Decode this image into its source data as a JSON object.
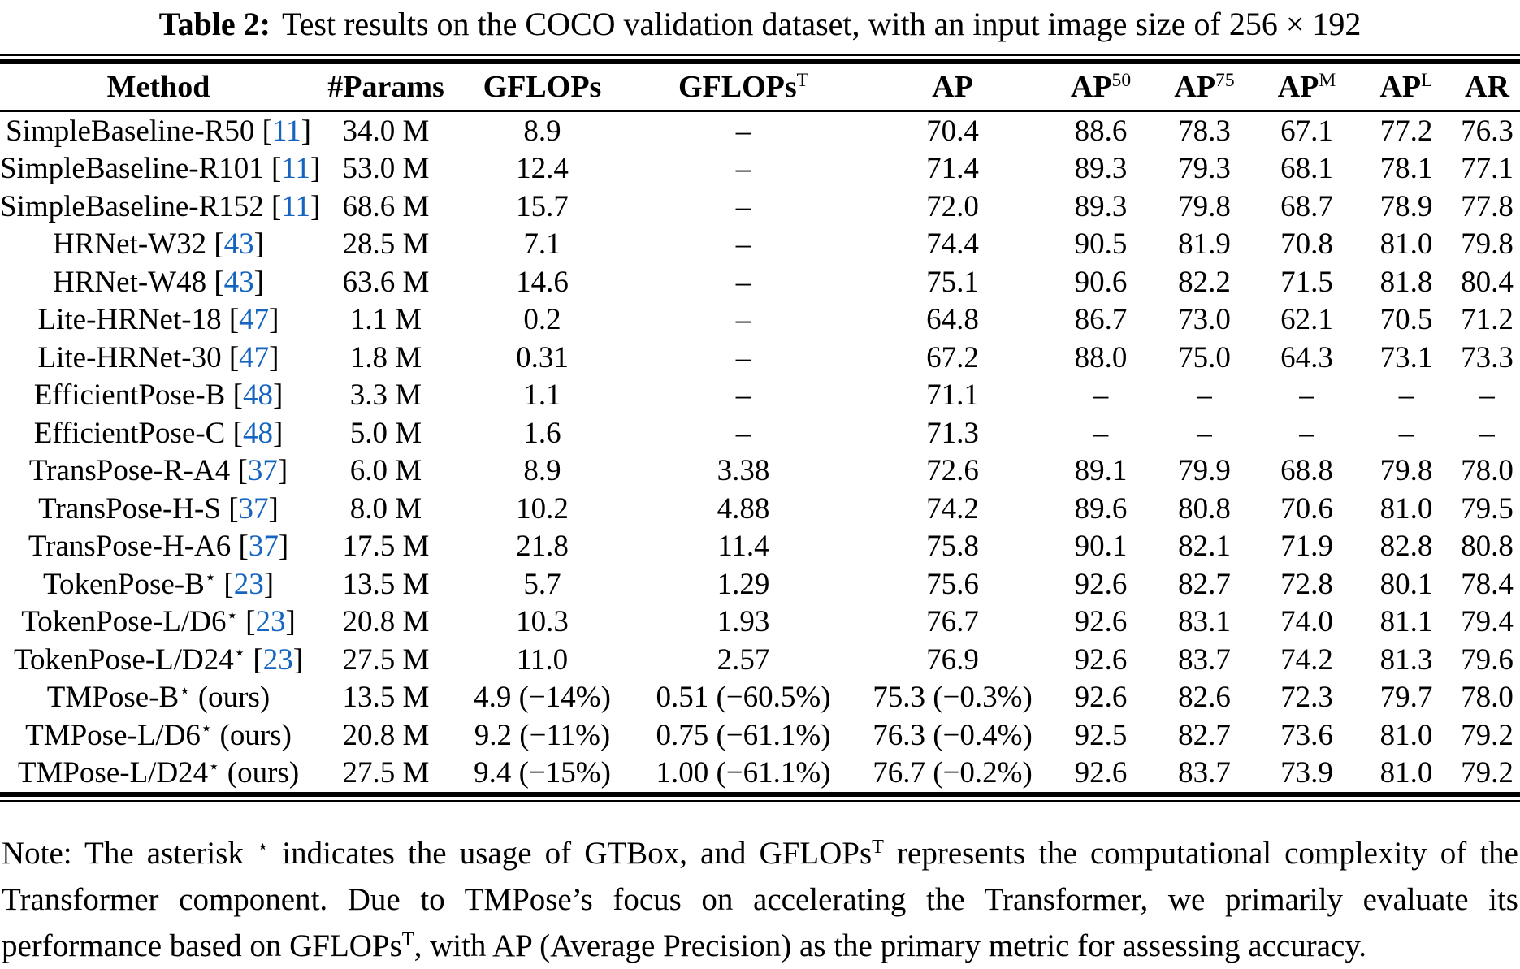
{
  "title": {
    "label": "Table 2:",
    "text": "Test results on the COCO validation dataset, with an input image size of 256 × 192"
  },
  "colors": {
    "citation": "#1565C0",
    "text": "#000000"
  },
  "symbols": {
    "bracket_open": "[",
    "bracket_close": "]",
    "star": "⋆",
    "ours_label": "(ours)",
    "missing": "–"
  },
  "table": {
    "columns": [
      {
        "key": "method",
        "label": "Method",
        "sup": ""
      },
      {
        "key": "params",
        "label": "#Params",
        "sup": ""
      },
      {
        "key": "gflops",
        "label": "GFLOPs",
        "sup": ""
      },
      {
        "key": "gflops_t",
        "label": "GFLOPs",
        "sup": "T"
      },
      {
        "key": "ap",
        "label": "AP",
        "sup": ""
      },
      {
        "key": "ap50",
        "label": "AP",
        "sup": "50"
      },
      {
        "key": "ap75",
        "label": "AP",
        "sup": "75"
      },
      {
        "key": "apm",
        "label": "AP",
        "sup": "M"
      },
      {
        "key": "apl",
        "label": "AP",
        "sup": "L"
      },
      {
        "key": "ar",
        "label": "AR",
        "sup": ""
      }
    ],
    "rows": [
      {
        "method": "SimpleBaseline-R50",
        "star": false,
        "ref": "11",
        "ours": false,
        "params": "34.0 M",
        "gflops": "8.9",
        "gflops_t": "–",
        "ap": "70.4",
        "ap50": "88.6",
        "ap75": "78.3",
        "apm": "67.1",
        "apl": "77.2",
        "ar": "76.3"
      },
      {
        "method": "SimpleBaseline-R101",
        "star": false,
        "ref": "11",
        "ours": false,
        "params": "53.0 M",
        "gflops": "12.4",
        "gflops_t": "–",
        "ap": "71.4",
        "ap50": "89.3",
        "ap75": "79.3",
        "apm": "68.1",
        "apl": "78.1",
        "ar": "77.1"
      },
      {
        "method": "SimpleBaseline-R152",
        "star": false,
        "ref": "11",
        "ours": false,
        "params": "68.6 M",
        "gflops": "15.7",
        "gflops_t": "–",
        "ap": "72.0",
        "ap50": "89.3",
        "ap75": "79.8",
        "apm": "68.7",
        "apl": "78.9",
        "ar": "77.8"
      },
      {
        "method": "HRNet-W32",
        "star": false,
        "ref": "43",
        "ours": false,
        "params": "28.5 M",
        "gflops": "7.1",
        "gflops_t": "–",
        "ap": "74.4",
        "ap50": "90.5",
        "ap75": "81.9",
        "apm": "70.8",
        "apl": "81.0",
        "ar": "79.8"
      },
      {
        "method": "HRNet-W48",
        "star": false,
        "ref": "43",
        "ours": false,
        "params": "63.6 M",
        "gflops": "14.6",
        "gflops_t": "–",
        "ap": "75.1",
        "ap50": "90.6",
        "ap75": "82.2",
        "apm": "71.5",
        "apl": "81.8",
        "ar": "80.4"
      },
      {
        "method": "Lite-HRNet-18",
        "star": false,
        "ref": "47",
        "ours": false,
        "params": "1.1 M",
        "gflops": "0.2",
        "gflops_t": "–",
        "ap": "64.8",
        "ap50": "86.7",
        "ap75": "73.0",
        "apm": "62.1",
        "apl": "70.5",
        "ar": "71.2"
      },
      {
        "method": "Lite-HRNet-30",
        "star": false,
        "ref": "47",
        "ours": false,
        "params": "1.8 M",
        "gflops": "0.31",
        "gflops_t": "–",
        "ap": "67.2",
        "ap50": "88.0",
        "ap75": "75.0",
        "apm": "64.3",
        "apl": "73.1",
        "ar": "73.3"
      },
      {
        "method": "EfficientPose-B",
        "star": false,
        "ref": "48",
        "ours": false,
        "params": "3.3 M",
        "gflops": "1.1",
        "gflops_t": "–",
        "ap": "71.1",
        "ap50": "–",
        "ap75": "–",
        "apm": "–",
        "apl": "–",
        "ar": "–"
      },
      {
        "method": "EfficientPose-C",
        "star": false,
        "ref": "48",
        "ours": false,
        "params": "5.0 M",
        "gflops": "1.6",
        "gflops_t": "–",
        "ap": "71.3",
        "ap50": "–",
        "ap75": "–",
        "apm": "–",
        "apl": "–",
        "ar": "–"
      },
      {
        "method": "TransPose-R-A4",
        "star": false,
        "ref": "37",
        "ours": false,
        "params": "6.0 M",
        "gflops": "8.9",
        "gflops_t": "3.38",
        "ap": "72.6",
        "ap50": "89.1",
        "ap75": "79.9",
        "apm": "68.8",
        "apl": "79.8",
        "ar": "78.0"
      },
      {
        "method": "TransPose-H-S",
        "star": false,
        "ref": "37",
        "ours": false,
        "params": "8.0 M",
        "gflops": "10.2",
        "gflops_t": "4.88",
        "ap": "74.2",
        "ap50": "89.6",
        "ap75": "80.8",
        "apm": "70.6",
        "apl": "81.0",
        "ar": "79.5"
      },
      {
        "method": "TransPose-H-A6",
        "star": false,
        "ref": "37",
        "ours": false,
        "params": "17.5 M",
        "gflops": "21.8",
        "gflops_t": "11.4",
        "ap": "75.8",
        "ap50": "90.1",
        "ap75": "82.1",
        "apm": "71.9",
        "apl": "82.8",
        "ar": "80.8"
      },
      {
        "method": "TokenPose-B",
        "star": true,
        "ref": "23",
        "ours": false,
        "params": "13.5 M",
        "gflops": "5.7",
        "gflops_t": "1.29",
        "ap": "75.6",
        "ap50": "92.6",
        "ap75": "82.7",
        "apm": "72.8",
        "apl": "80.1",
        "ar": "78.4"
      },
      {
        "method": "TokenPose-L/D6",
        "star": true,
        "ref": "23",
        "ours": false,
        "params": "20.8 M",
        "gflops": "10.3",
        "gflops_t": "1.93",
        "ap": "76.7",
        "ap50": "92.6",
        "ap75": "83.1",
        "apm": "74.0",
        "apl": "81.1",
        "ar": "79.4"
      },
      {
        "method": "TokenPose-L/D24",
        "star": true,
        "ref": "23",
        "ours": false,
        "params": "27.5 M",
        "gflops": "11.0",
        "gflops_t": "2.57",
        "ap": "76.9",
        "ap50": "92.6",
        "ap75": "83.7",
        "apm": "74.2",
        "apl": "81.3",
        "ar": "79.6"
      },
      {
        "method": "TMPose-B",
        "star": true,
        "ref": "",
        "ours": true,
        "params": "13.5 M",
        "gflops": "4.9 (−14%)",
        "gflops_t": "0.51 (−60.5%)",
        "ap": "75.3 (−0.3%)",
        "ap50": "92.6",
        "ap75": "82.6",
        "apm": "72.3",
        "apl": "79.7",
        "ar": "78.0"
      },
      {
        "method": "TMPose-L/D6",
        "star": true,
        "ref": "",
        "ours": true,
        "params": "20.8 M",
        "gflops": "9.2 (−11%)",
        "gflops_t": "0.75 (−61.1%)",
        "ap": "76.3 (−0.4%)",
        "ap50": "92.5",
        "ap75": "82.7",
        "apm": "73.6",
        "apl": "81.0",
        "ar": "79.2"
      },
      {
        "method": "TMPose-L/D24",
        "star": true,
        "ref": "",
        "ours": true,
        "params": "27.5 M",
        "gflops": "9.4 (−15%)",
        "gflops_t": "1.00 (−61.1%)",
        "ap": "76.7 (−0.2%)",
        "ap50": "92.6",
        "ap75": "83.7",
        "apm": "73.9",
        "apl": "81.0",
        "ar": "79.2"
      }
    ]
  },
  "note": {
    "segments": [
      {
        "t": "Note: The asterisk ",
        "sup": false
      },
      {
        "t": "⋆",
        "sup": true
      },
      {
        "t": " indicates the usage of GTBox, and GFLOPs",
        "sup": false
      },
      {
        "t": "T",
        "sup": true
      },
      {
        "t": " represents the computational complexity of the Transformer component. Due to TMPose’s focus on accelerating the Transformer, we primarily evaluate its performance based on GFLOPs",
        "sup": false
      },
      {
        "t": "T",
        "sup": true
      },
      {
        "t": ", with AP (Average Precision) as the primary metric for assessing accuracy.",
        "sup": false
      }
    ]
  }
}
